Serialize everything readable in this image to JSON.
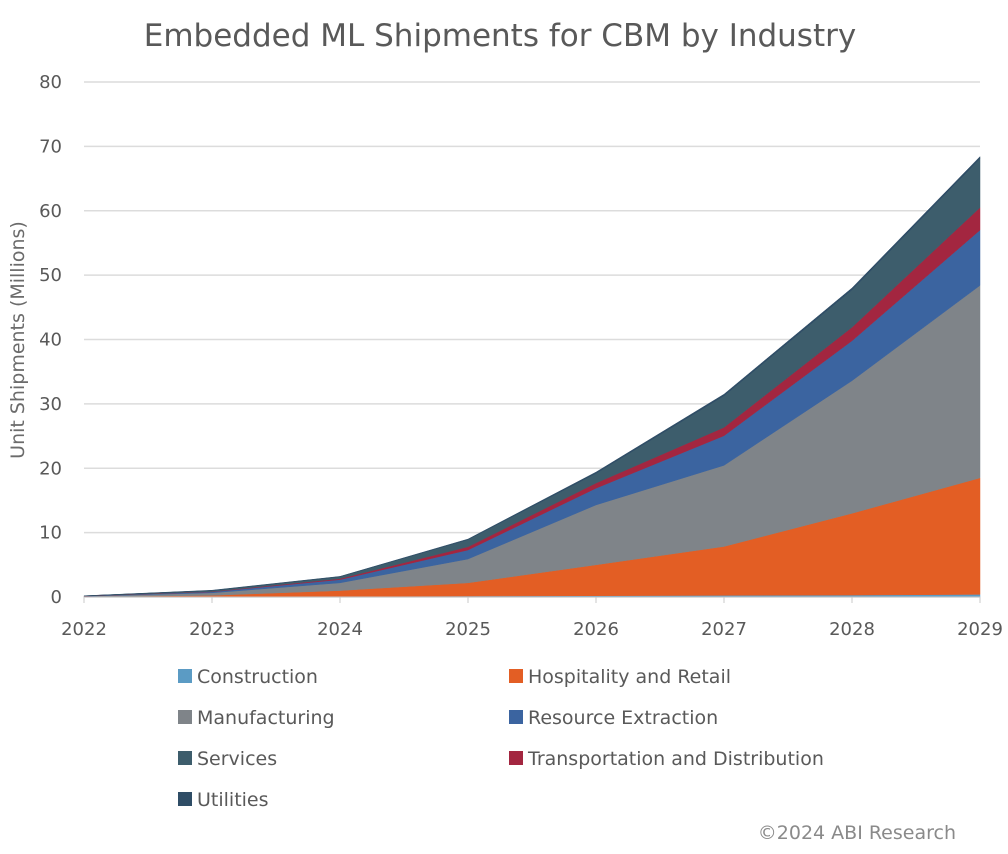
{
  "chart_data": {
    "type": "area",
    "stacked": true,
    "title": "Embedded ML Shipments for CBM by Industry",
    "xlabel": "",
    "ylabel": "Unit Shipments (Millions)",
    "x": [
      "2022",
      "2023",
      "2024",
      "2025",
      "2026",
      "2027",
      "2028",
      "2029"
    ],
    "ylim": [
      0,
      80
    ],
    "yticks": [
      "0",
      "10",
      "20",
      "30",
      "40",
      "50",
      "60",
      "70",
      "80"
    ],
    "grid": true,
    "legend_position": "bottom",
    "series": [
      {
        "name": "Construction",
        "color": "#5b9bc4",
        "values": [
          0.02,
          0.05,
          0.1,
          0.15,
          0.2,
          0.25,
          0.3,
          0.4
        ]
      },
      {
        "name": "Hospitality and Retail",
        "color": "#e35e24",
        "values": [
          0.03,
          0.2,
          0.9,
          2.05,
          4.8,
          7.6,
          12.7,
          18.1
        ]
      },
      {
        "name": "Manufacturing",
        "color": "#7f8489",
        "values": [
          0.06,
          0.4,
          1.2,
          3.7,
          9.3,
          12.6,
          20.6,
          29.9
        ]
      },
      {
        "name": "Resource Extraction",
        "color": "#3b64a0",
        "values": [
          0.03,
          0.15,
          0.5,
          1.4,
          2.6,
          4.6,
          6.2,
          8.6
        ]
      },
      {
        "name": "Transportation and Distribution",
        "color": "#a32640",
        "values": [
          0.01,
          0.05,
          0.15,
          0.5,
          0.8,
          1.3,
          2.1,
          3.5
        ]
      },
      {
        "name": "Services",
        "color": "#3d5d6c",
        "values": [
          0.03,
          0.15,
          0.3,
          1.1,
          1.5,
          4.9,
          5.8,
          7.6
        ]
      },
      {
        "name": "Utilities",
        "color": "#2f4d66",
        "values": [
          0.01,
          0.05,
          0.05,
          0.1,
          0.2,
          0.25,
          0.3,
          0.3
        ]
      }
    ],
    "legend_order": [
      "Construction",
      "Hospitality and Retail",
      "Manufacturing",
      "Resource Extraction",
      "Services",
      "Transportation and Distribution",
      "Utilities"
    ],
    "source": "©2024 ABI Research"
  }
}
